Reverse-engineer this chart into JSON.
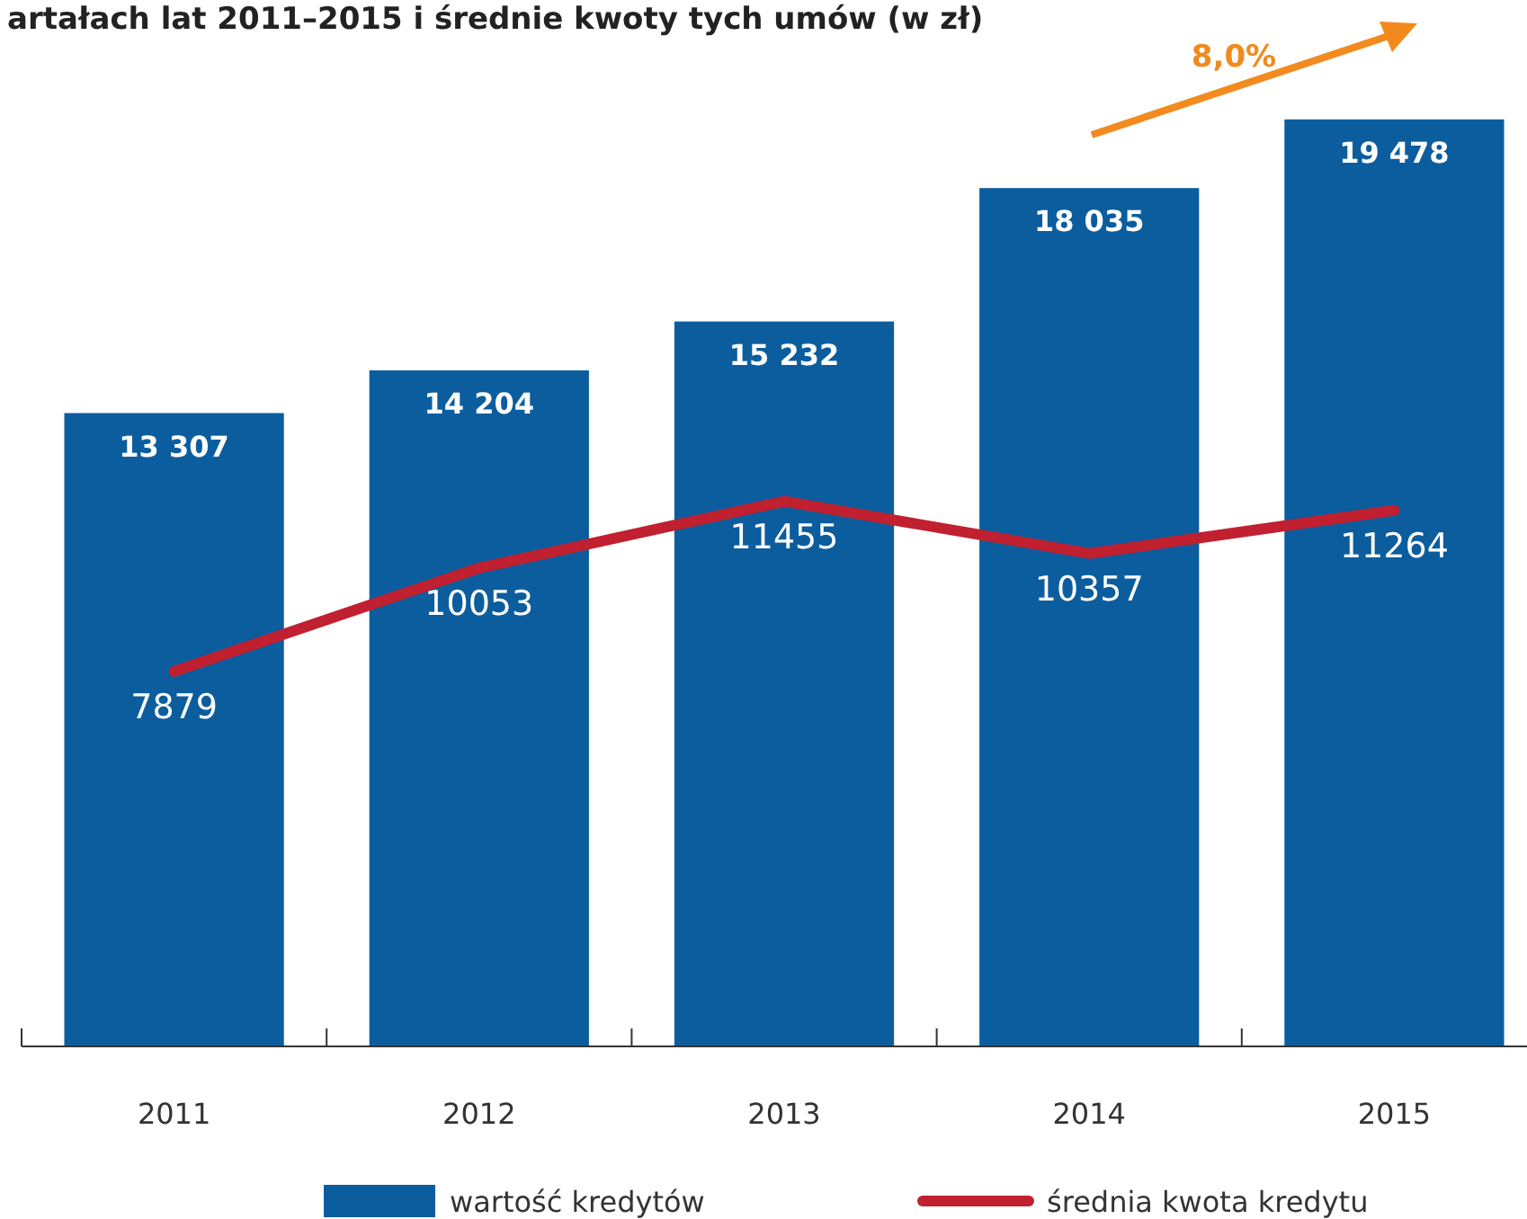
{
  "chart_data": {
    "type": "bar",
    "title": "artałach lat 2011–2015 i średnie kwoty tych umów (w zł)",
    "categories": [
      "2011",
      "2012",
      "2013",
      "2014",
      "2015"
    ],
    "series": [
      {
        "name": "wartość kredytów",
        "color": "#0b5d9e",
        "values": [
          13307,
          14204,
          15232,
          18035,
          19478
        ],
        "value_labels": [
          "13 307",
          "14 204",
          "15 232",
          "18 035",
          "19 478"
        ]
      },
      {
        "name": "średnia kwota kredytu",
        "type": "line",
        "color": "#c0202f",
        "values": [
          7879,
          10053,
          11455,
          10357,
          11264
        ],
        "value_labels": [
          "7879",
          "10053",
          "11455",
          "10357",
          "11264"
        ]
      }
    ],
    "tick_labels": "x",
    "legend": "bottom",
    "grid": false,
    "annotations": [
      "8,0%"
    ]
  }
}
